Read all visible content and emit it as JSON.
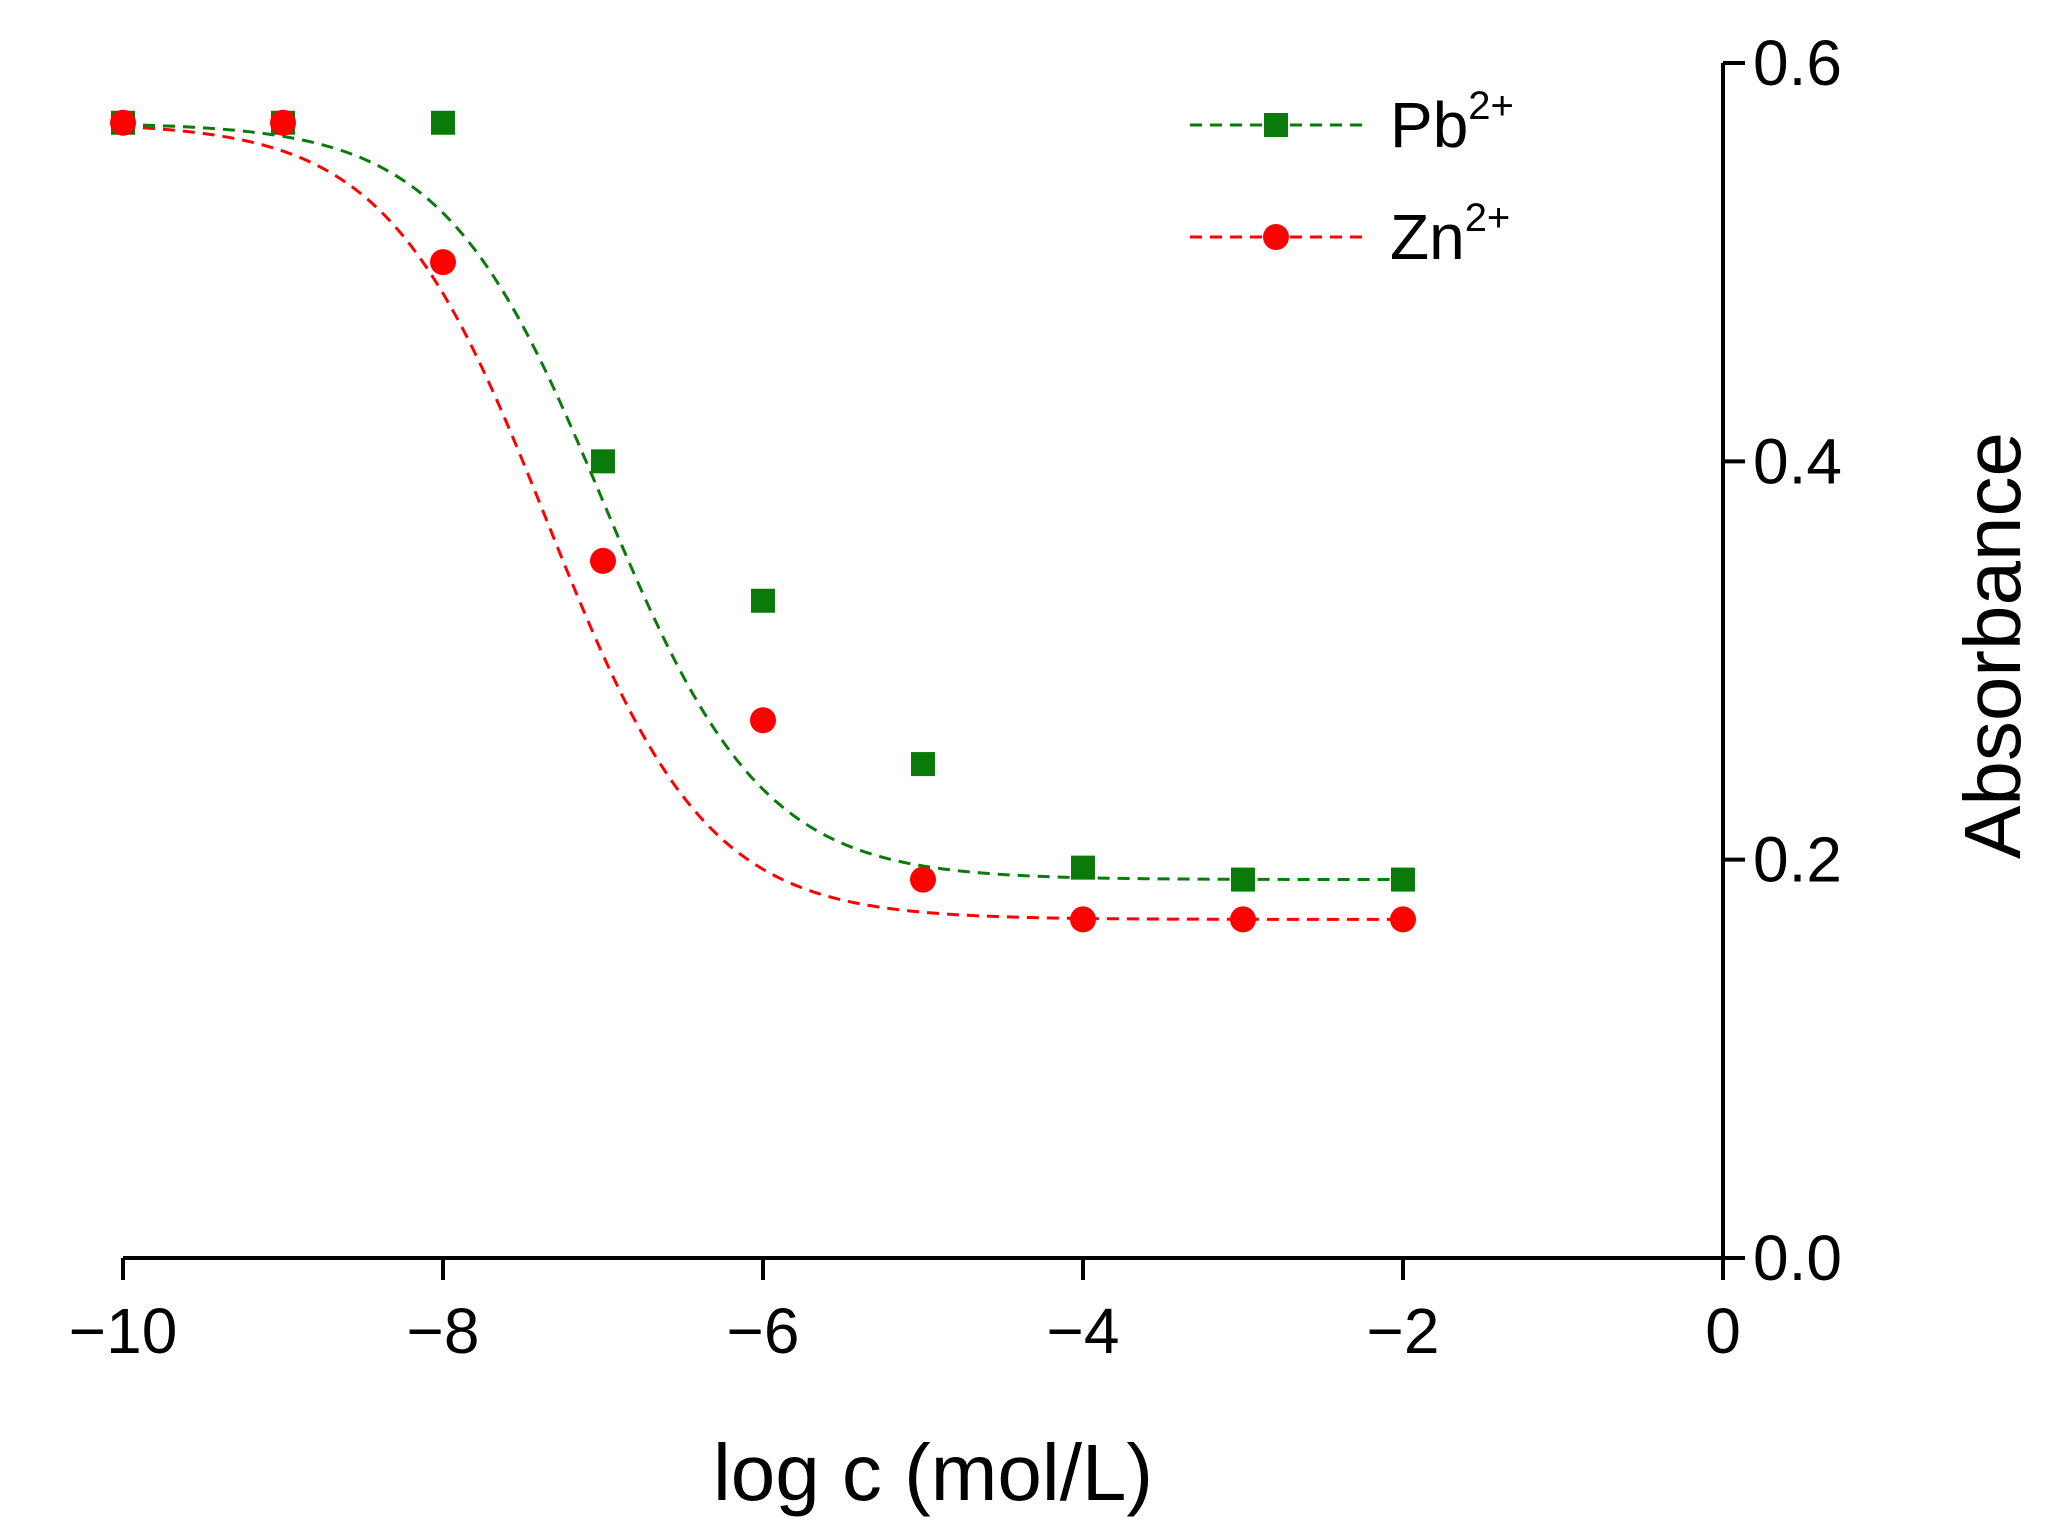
{
  "chart_data": {
    "type": "scatter",
    "title": "",
    "xlabel": "log c (mol/L)",
    "ylabel": "Absorbance",
    "xlim": [
      -10,
      0
    ],
    "ylim": [
      0.0,
      0.6
    ],
    "x_ticks": [
      -10,
      -8,
      -6,
      -4,
      -2,
      0
    ],
    "x_tick_labels": [
      "−10",
      "−8",
      "−6",
      "−4",
      "−2",
      "0"
    ],
    "y_ticks": [
      0.0,
      0.2,
      0.4,
      0.6
    ],
    "y_tick_labels": [
      "0.0",
      "0.2",
      "0.4",
      "0.6"
    ],
    "y_axis_side": "right",
    "grid": false,
    "legend_position": "top-right",
    "series": [
      {
        "name": "Pb2+",
        "label_base": "Pb",
        "label_sup": "2+",
        "marker": "square",
        "color": "#0a7a0a",
        "line_style": "dashed-fit",
        "x": [
          -10,
          -9,
          -8,
          -7,
          -6,
          -5,
          -4,
          -3,
          -2
        ],
        "y": [
          0.57,
          0.57,
          0.57,
          0.4,
          0.33,
          0.248,
          0.196,
          0.19,
          0.19
        ],
        "fit": {
          "top": 0.57,
          "bottom": 0.19,
          "x0": -7.0,
          "p": 2.0
        }
      },
      {
        "name": "Zn2+",
        "label_base": "Zn",
        "label_sup": "2+",
        "marker": "circle",
        "color": "#ff0000",
        "line_style": "dashed-fit",
        "x": [
          -10,
          -9,
          -8,
          -7,
          -6,
          -5,
          -4,
          -3,
          -2
        ],
        "y": [
          0.57,
          0.57,
          0.5,
          0.35,
          0.27,
          0.19,
          0.17,
          0.17,
          0.17
        ],
        "fit": {
          "top": 0.57,
          "bottom": 0.17,
          "x0": -7.35,
          "p": 2.0
        }
      }
    ]
  }
}
